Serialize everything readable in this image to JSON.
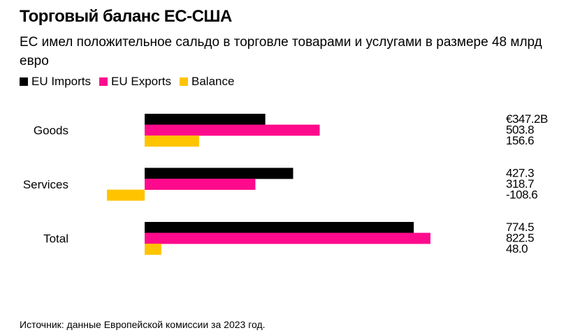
{
  "title": "Торговый баланс ЕС-США",
  "subtitle": "ЕС имел положительное сальдо в торговле товарами и услугами в размере 48 млрд евро",
  "source": "Источник: данные Европейской комиссии за 2023 год.",
  "chart_data": {
    "type": "bar",
    "orientation": "horizontal",
    "unit": "€ billion",
    "categories": [
      "Goods",
      "Services",
      "Total"
    ],
    "series": [
      {
        "name": "EU Imports",
        "color": "#000000",
        "values": [
          347.2,
          427.3,
          774.5
        ],
        "labels": [
          "€347.2B",
          "427.3",
          "774.5"
        ]
      },
      {
        "name": "EU Exports",
        "color": "#ff0a8c",
        "values": [
          503.8,
          318.7,
          822.5
        ],
        "labels": [
          "503.8",
          "318.7",
          "822.5"
        ]
      },
      {
        "name": "Balance",
        "color": "#ffc400",
        "values": [
          156.6,
          -108.6,
          48.0
        ],
        "labels": [
          "156.6",
          "-108.6",
          "48.0"
        ]
      }
    ],
    "legend": "top-left",
    "grid": false
  }
}
